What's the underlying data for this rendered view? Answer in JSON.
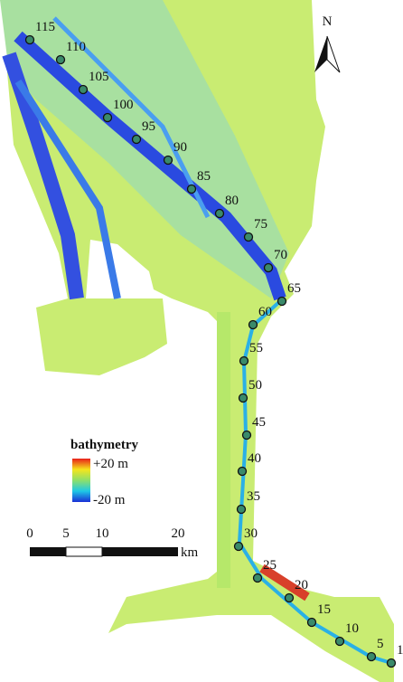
{
  "north": "N",
  "stations": [
    "115",
    "110",
    "105",
    "100",
    "95",
    "90",
    "85",
    "80",
    "75",
    "70",
    "65",
    "60",
    "55",
    "50",
    "45",
    "40",
    "35",
    "30",
    "25",
    "20",
    "15",
    "10",
    "5",
    "1"
  ],
  "legend": {
    "title": "bathymetry",
    "max": "+20 m",
    "min": "-20 m"
  },
  "scale": {
    "ticks": [
      "0",
      "5",
      "10",
      "20"
    ],
    "unit": "km"
  }
}
